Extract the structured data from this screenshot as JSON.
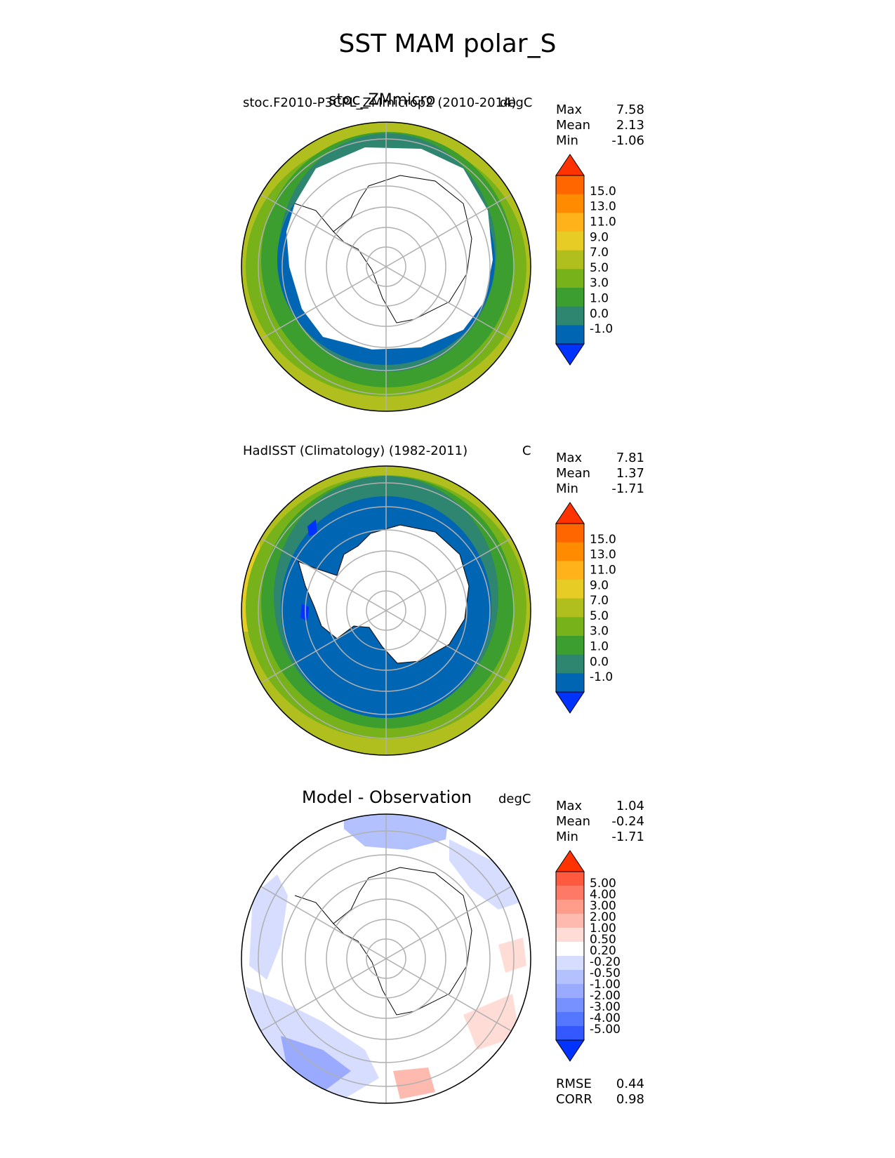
{
  "figure": {
    "title": "SST MAM polar_S"
  },
  "colors": {
    "land": "#ffffff",
    "coast": "#000000",
    "grid": "#b0b0b0",
    "sst_levels": [
      "#0033ff",
      "#0066b3",
      "#2e8570",
      "#3b9e2e",
      "#78b21a",
      "#b0be1e",
      "#e8cc26",
      "#ffb21a",
      "#ff8c00",
      "#ff6600",
      "#ff3300"
    ],
    "diff_levels": [
      "#0033ff",
      "#3358ff",
      "#5577ff",
      "#7791ff",
      "#99aaff",
      "#b3c2ff",
      "#d6ddff",
      "#ffffff",
      "#ffdcd6",
      "#ffbab0",
      "#ff9c8a",
      "#ff7a66",
      "#ff5a40",
      "#ff3300"
    ]
  },
  "panels": [
    {
      "id": "model",
      "left_title": "stoc.F2010-P3CPL_ZMmicrop2 (2010-2014)",
      "center_title": "stoc_ZMmicro",
      "units": "degC",
      "stats": {
        "max_label": "Max",
        "max": "7.58",
        "mean_label": "Mean",
        "mean": "2.13",
        "min_label": "Min",
        "min": "-1.06"
      },
      "colorbar": {
        "ticks": [
          "15.0",
          "13.0",
          "11.0",
          "9.0",
          "7.0",
          "5.0",
          "3.0",
          "1.0",
          "0.0",
          "-1.0"
        ]
      }
    },
    {
      "id": "obs",
      "left_title": "HadISST (Climatology) (1982-2011)",
      "units": "C",
      "stats": {
        "max_label": "Max",
        "max": "7.81",
        "mean_label": "Mean",
        "mean": "1.37",
        "min_label": "Min",
        "min": "-1.71"
      },
      "colorbar": {
        "ticks": [
          "15.0",
          "13.0",
          "11.0",
          "9.0",
          "7.0",
          "5.0",
          "3.0",
          "1.0",
          "0.0",
          "-1.0"
        ]
      }
    },
    {
      "id": "diff",
      "center_title": "Model - Observation",
      "units": "degC",
      "stats": {
        "max_label": "Max",
        "max": "1.04",
        "mean_label": "Mean",
        "mean": "-0.24",
        "min_label": "Min",
        "min": "-1.71"
      },
      "colorbar": {
        "ticks": [
          "5.00",
          "4.00",
          "3.00",
          "2.00",
          "1.00",
          "0.50",
          "0.20",
          "-0.20",
          "-0.50",
          "-1.00",
          "-2.00",
          "-3.00",
          "-4.00",
          "-5.00"
        ]
      },
      "metrics": {
        "rmse_label": "RMSE",
        "rmse": "0.44",
        "corr_label": "CORR",
        "corr": "0.98"
      }
    }
  ],
  "chart_data": [
    {
      "type": "heatmap",
      "projection": "south polar stereographic",
      "title": "stoc_ZMmicro",
      "levels": [
        -1.0,
        0.0,
        1.0,
        3.0,
        5.0,
        7.0,
        9.0,
        11.0,
        13.0,
        15.0
      ],
      "field_summary": {
        "max": 7.58,
        "mean": 2.13,
        "min": -1.06
      }
    },
    {
      "type": "heatmap",
      "projection": "south polar stereographic",
      "title": "HadISST (Climatology) (1982-2011)",
      "levels": [
        -1.0,
        0.0,
        1.0,
        3.0,
        5.0,
        7.0,
        9.0,
        11.0,
        13.0,
        15.0
      ],
      "field_summary": {
        "max": 7.81,
        "mean": 1.37,
        "min": -1.71
      }
    },
    {
      "type": "heatmap",
      "projection": "south polar stereographic",
      "title": "Model - Observation",
      "levels": [
        -5.0,
        -4.0,
        -3.0,
        -2.0,
        -1.0,
        -0.5,
        -0.2,
        0.2,
        0.5,
        1.0,
        2.0,
        3.0,
        4.0,
        5.0
      ],
      "field_summary": {
        "max": 1.04,
        "mean": -0.24,
        "min": -1.71,
        "rmse": 0.44,
        "corr": 0.98
      }
    }
  ]
}
